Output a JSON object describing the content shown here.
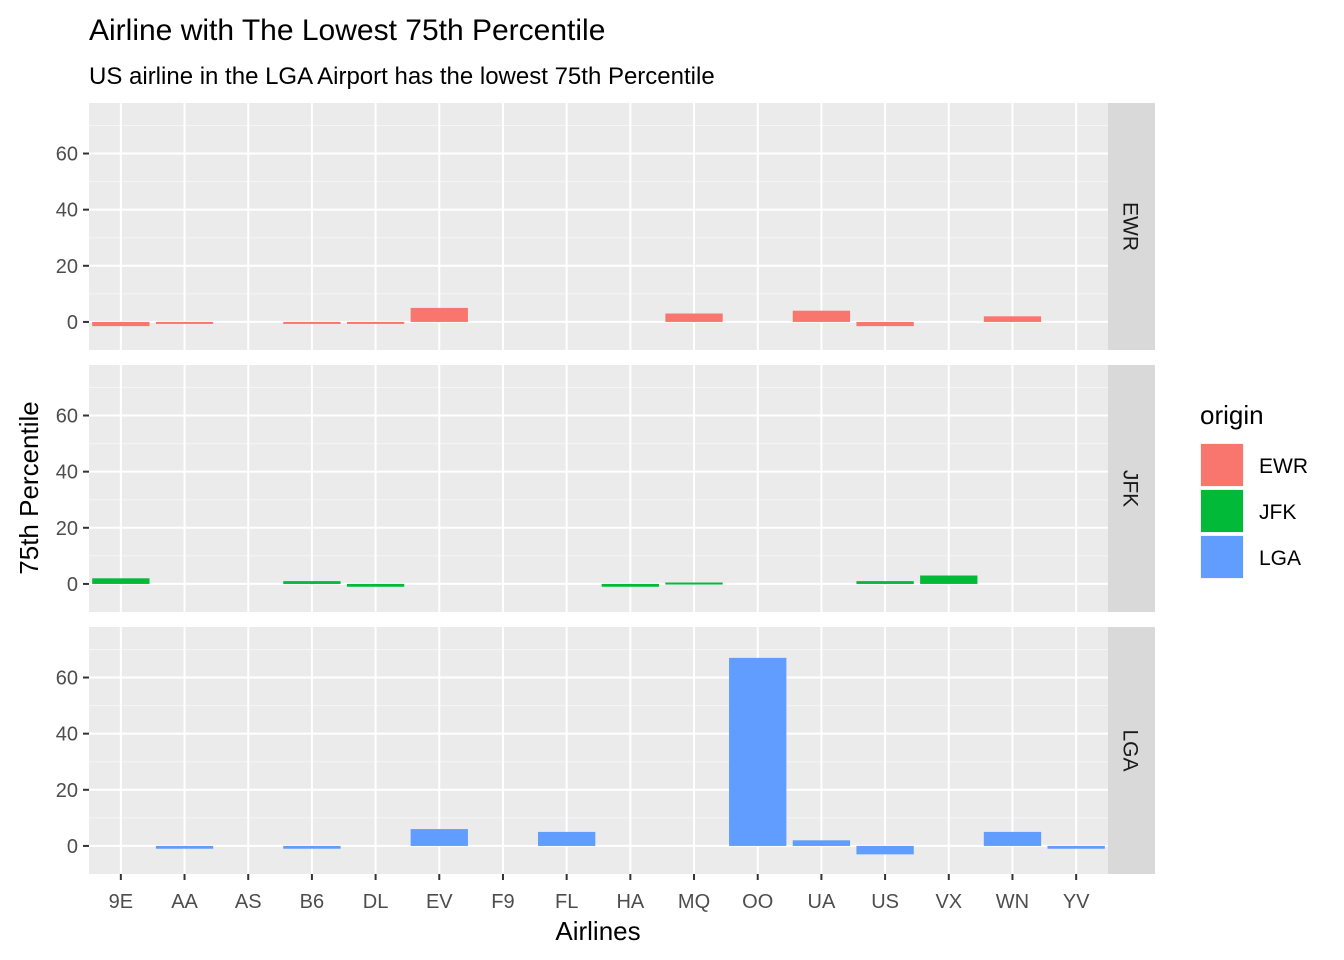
{
  "chart_data": {
    "type": "bar",
    "title": "Airline with The Lowest 75th Percentile",
    "subtitle": "US airline in the LGA Airport has the lowest 75th Percentile",
    "xlabel": "Airlines",
    "ylabel": "75th Percentile",
    "ylim": [
      -10,
      78
    ],
    "yticks": [
      0,
      20,
      40,
      60
    ],
    "grid": true,
    "facet_by": "origin",
    "legend": {
      "title": "origin",
      "position": "right"
    },
    "categories": [
      "9E",
      "AA",
      "AS",
      "B6",
      "DL",
      "EV",
      "F9",
      "FL",
      "HA",
      "MQ",
      "OO",
      "UA",
      "US",
      "VX",
      "WN",
      "YV"
    ],
    "series": [
      {
        "name": "EWR",
        "color": "#F8766D",
        "values": [
          -1.5,
          -0.5,
          null,
          -0.5,
          -0.5,
          5,
          null,
          null,
          null,
          3,
          null,
          4,
          -1.5,
          null,
          2,
          null
        ]
      },
      {
        "name": "JFK",
        "color": "#00BA38",
        "values": [
          2,
          null,
          null,
          1,
          -1,
          null,
          null,
          null,
          -1,
          0.5,
          null,
          null,
          1,
          3,
          null,
          null
        ]
      },
      {
        "name": "LGA",
        "color": "#619CFF",
        "values": [
          null,
          -1,
          null,
          -1,
          null,
          6,
          null,
          5,
          null,
          null,
          67,
          2,
          -3,
          null,
          5,
          -1
        ]
      }
    ]
  }
}
